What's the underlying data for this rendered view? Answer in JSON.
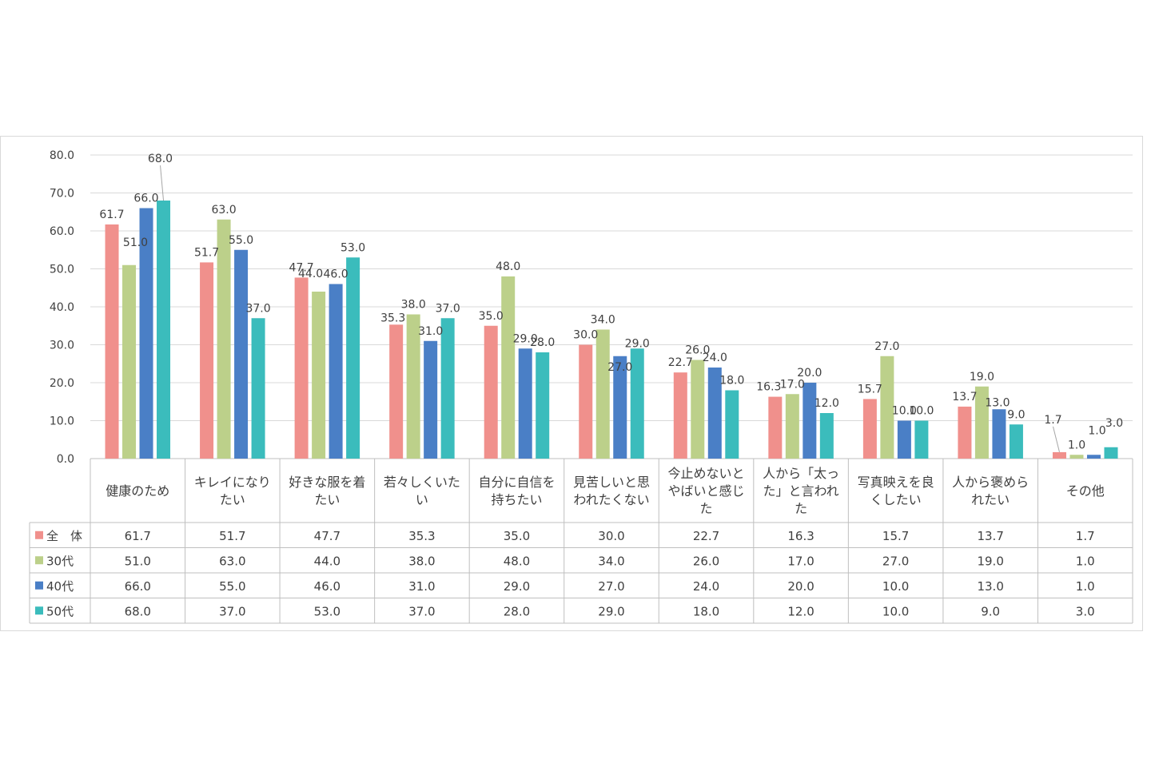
{
  "chart_data": {
    "type": "bar",
    "ylim": [
      0,
      80
    ],
    "yticks": [
      "0.0",
      "10.0",
      "20.0",
      "30.0",
      "40.0",
      "50.0",
      "60.0",
      "70.0",
      "80.0"
    ],
    "grid": true,
    "legend": "data-table",
    "categories": [
      [
        "健康のため"
      ],
      [
        "キレイになり",
        "たい"
      ],
      [
        "好きな服を着",
        "たい"
      ],
      [
        "若々しくいた",
        "い"
      ],
      [
        "自分に自信を",
        "持ちたい"
      ],
      [
        "見苦しいと思",
        "われたくない"
      ],
      [
        "今止めないと",
        "やばいと感じ",
        "た"
      ],
      [
        "人から「太っ",
        "た」と言われ",
        "た"
      ],
      [
        "写真映えを良",
        "くしたい"
      ],
      [
        "人から褒めら",
        "れたい"
      ],
      [
        "その他"
      ]
    ],
    "series": [
      {
        "name": "全　体",
        "color": "#f0908c",
        "values": [
          61.7,
          51.7,
          47.7,
          35.3,
          35.0,
          30.0,
          22.7,
          16.3,
          15.7,
          13.7,
          1.7
        ]
      },
      {
        "name": "30代",
        "color": "#bcd08a",
        "values": [
          51.0,
          63.0,
          44.0,
          38.0,
          48.0,
          34.0,
          26.0,
          17.0,
          27.0,
          19.0,
          1.0
        ]
      },
      {
        "name": "40代",
        "color": "#4a7fc6",
        "values": [
          66.0,
          55.0,
          46.0,
          31.0,
          29.0,
          27.0,
          24.0,
          20.0,
          10.0,
          13.0,
          1.0
        ]
      },
      {
        "name": "50代",
        "color": "#3bbcbc",
        "values": [
          68.0,
          37.0,
          53.0,
          37.0,
          28.0,
          29.0,
          18.0,
          12.0,
          10.0,
          9.0,
          3.0
        ]
      }
    ]
  }
}
